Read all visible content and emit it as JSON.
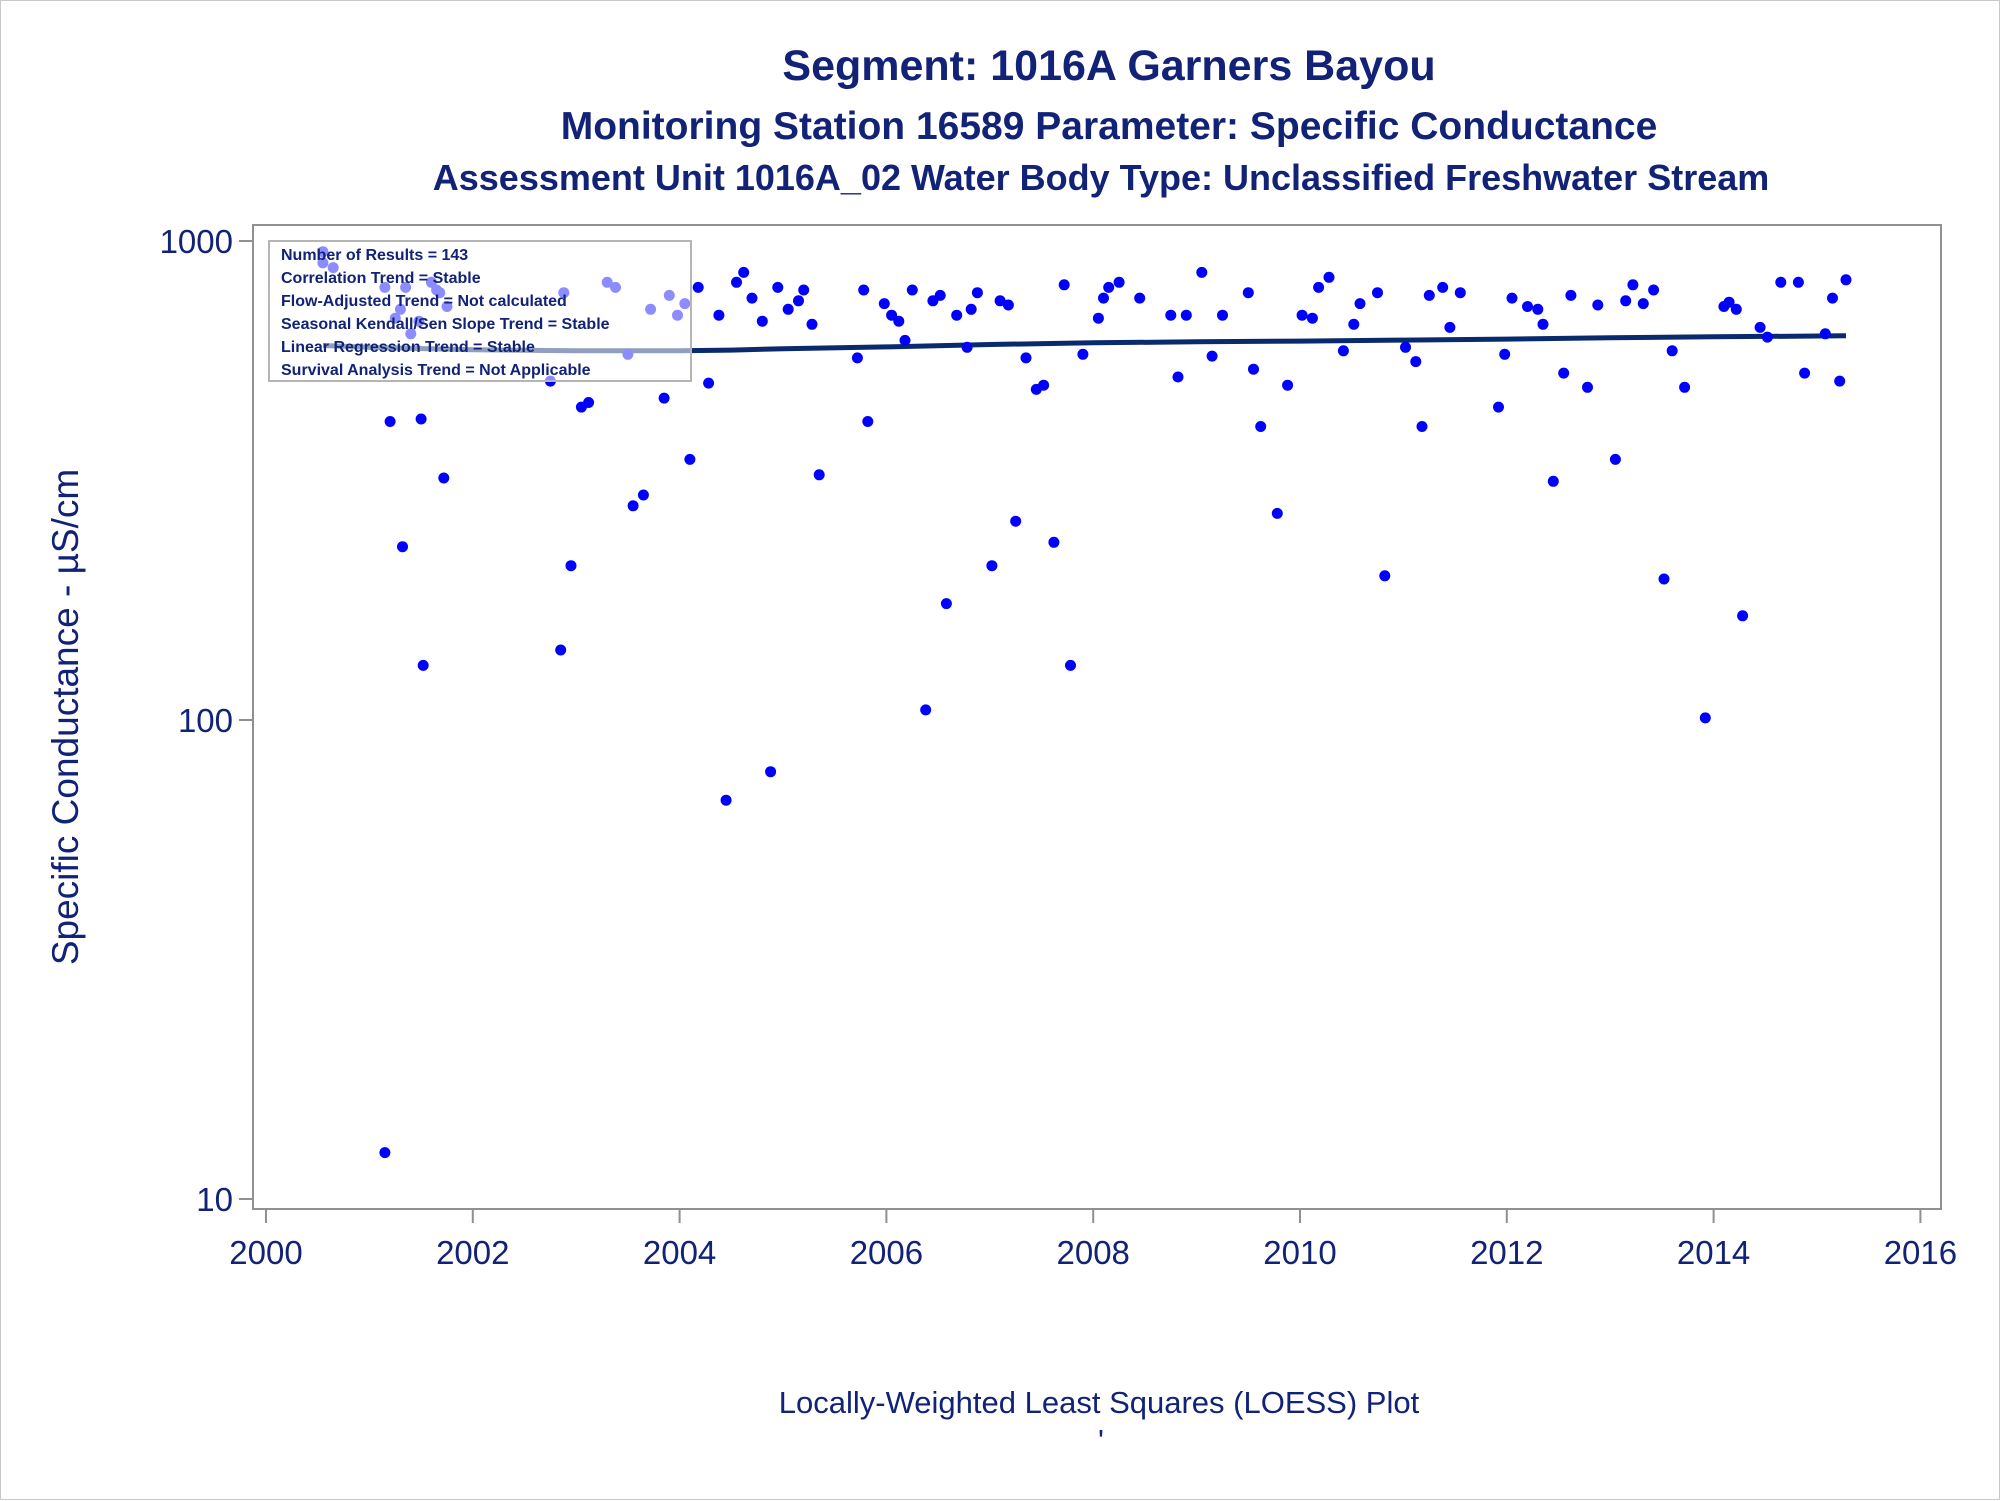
{
  "chart_data": {
    "type": "scatter",
    "title": "Segment: 1016A  Garners Bayou",
    "subtitle": "Monitoring Station 16589 Parameter: Specific Conductance",
    "subtitle2": "Assessment Unit 1016A_02   Water Body Type: Unclassified Freshwater Stream",
    "ylabel": "Specific Conductance -  µS/cm",
    "xlabel": "",
    "footnote": "Locally-Weighted Least Squares (LOESS) Plot",
    "footnote_mark": "'",
    "x_axis": {
      "min": 2000,
      "max": 2016,
      "ticks": [
        2000,
        2002,
        2004,
        2006,
        2008,
        2010,
        2012,
        2014,
        2016
      ]
    },
    "y_axis": {
      "scale": "log",
      "min": 10,
      "max": 1000,
      "ticks": [
        10,
        100,
        1000
      ]
    },
    "grid": false,
    "legend": "none",
    "colors": {
      "points": "#0000ff",
      "trend": "#0a2a6e",
      "text": "#112277",
      "axis": "#909090"
    },
    "stats_box": {
      "placement": "top-left",
      "lines": [
        "Number of Results = 143",
        "Correlation Trend = Stable",
        "Flow-Adjusted Trend = Not calculated",
        "Seasonal Kendall/Sen Slope Trend = Stable",
        "Linear Regression Trend = Stable",
        "Survival Analysis Trend = Not Applicable"
      ]
    },
    "series": [
      {
        "type": "scatter",
        "points": [
          [
            2000.55,
            950
          ],
          [
            2000.55,
            900
          ],
          [
            2000.65,
            880
          ],
          [
            2001.15,
            800
          ],
          [
            2001.2,
            420
          ],
          [
            2001.25,
            690
          ],
          [
            2001.3,
            720
          ],
          [
            2001.32,
            230
          ],
          [
            2001.35,
            800
          ],
          [
            2001.4,
            640
          ],
          [
            2001.48,
            680
          ],
          [
            2001.5,
            425
          ],
          [
            2001.52,
            130
          ],
          [
            2001.6,
            820
          ],
          [
            2001.65,
            790
          ],
          [
            2001.68,
            780
          ],
          [
            2001.72,
            320
          ],
          [
            2001.75,
            730
          ],
          [
            2001.15,
            12.5
          ],
          [
            2002.75,
            510
          ],
          [
            2002.85,
            140
          ],
          [
            2002.88,
            780
          ],
          [
            2002.95,
            210
          ],
          [
            2003.05,
            450
          ],
          [
            2003.12,
            460
          ],
          [
            2003.3,
            820
          ],
          [
            2003.38,
            800
          ],
          [
            2003.5,
            580
          ],
          [
            2003.55,
            280
          ],
          [
            2003.65,
            295
          ],
          [
            2003.72,
            720
          ],
          [
            2003.85,
            470
          ],
          [
            2003.9,
            770
          ],
          [
            2003.98,
            700
          ],
          [
            2004.05,
            740
          ],
          [
            2004.1,
            350
          ],
          [
            2004.18,
            800
          ],
          [
            2004.28,
            505
          ],
          [
            2004.38,
            700
          ],
          [
            2004.45,
            68
          ],
          [
            2004.55,
            820
          ],
          [
            2004.62,
            860
          ],
          [
            2004.7,
            760
          ],
          [
            2004.8,
            680
          ],
          [
            2004.88,
            78
          ],
          [
            2004.95,
            800
          ],
          [
            2005.05,
            720
          ],
          [
            2005.15,
            750
          ],
          [
            2005.2,
            790
          ],
          [
            2005.28,
            670
          ],
          [
            2005.35,
            325
          ],
          [
            2005.72,
            570
          ],
          [
            2005.78,
            790
          ],
          [
            2005.82,
            420
          ],
          [
            2005.98,
            740
          ],
          [
            2006.05,
            700
          ],
          [
            2006.12,
            680
          ],
          [
            2006.18,
            620
          ],
          [
            2006.25,
            790
          ],
          [
            2006.38,
            105
          ],
          [
            2006.45,
            750
          ],
          [
            2006.52,
            770
          ],
          [
            2006.58,
            175
          ],
          [
            2006.68,
            700
          ],
          [
            2006.78,
            600
          ],
          [
            2006.82,
            720
          ],
          [
            2006.88,
            780
          ],
          [
            2007.02,
            210
          ],
          [
            2007.1,
            750
          ],
          [
            2007.18,
            735
          ],
          [
            2007.25,
            260
          ],
          [
            2007.35,
            570
          ],
          [
            2007.45,
            490
          ],
          [
            2007.52,
            500
          ],
          [
            2007.62,
            235
          ],
          [
            2007.72,
            810
          ],
          [
            2007.78,
            130
          ],
          [
            2007.9,
            580
          ],
          [
            2008.05,
            690
          ],
          [
            2008.1,
            760
          ],
          [
            2008.15,
            800
          ],
          [
            2008.25,
            820
          ],
          [
            2008.45,
            760
          ],
          [
            2008.75,
            700
          ],
          [
            2008.82,
            520
          ],
          [
            2008.9,
            700
          ],
          [
            2009.05,
            860
          ],
          [
            2009.15,
            575
          ],
          [
            2009.25,
            700
          ],
          [
            2009.5,
            780
          ],
          [
            2009.55,
            540
          ],
          [
            2009.62,
            410
          ],
          [
            2009.78,
            270
          ],
          [
            2009.88,
            500
          ],
          [
            2010.02,
            700
          ],
          [
            2010.12,
            690
          ],
          [
            2010.18,
            800
          ],
          [
            2010.28,
            840
          ],
          [
            2010.42,
            590
          ],
          [
            2010.52,
            670
          ],
          [
            2010.58,
            740
          ],
          [
            2010.75,
            780
          ],
          [
            2010.82,
            200
          ],
          [
            2011.02,
            600
          ],
          [
            2011.12,
            560
          ],
          [
            2011.18,
            410
          ],
          [
            2011.25,
            770
          ],
          [
            2011.38,
            800
          ],
          [
            2011.45,
            660
          ],
          [
            2011.55,
            780
          ],
          [
            2011.92,
            450
          ],
          [
            2011.98,
            580
          ],
          [
            2012.05,
            760
          ],
          [
            2012.2,
            730
          ],
          [
            2012.3,
            720
          ],
          [
            2012.35,
            670
          ],
          [
            2012.45,
            315
          ],
          [
            2012.55,
            530
          ],
          [
            2012.62,
            770
          ],
          [
            2012.78,
            495
          ],
          [
            2012.88,
            735
          ],
          [
            2013.05,
            350
          ],
          [
            2013.15,
            750
          ],
          [
            2013.22,
            810
          ],
          [
            2013.32,
            740
          ],
          [
            2013.42,
            790
          ],
          [
            2013.52,
            197
          ],
          [
            2013.6,
            590
          ],
          [
            2013.72,
            495
          ],
          [
            2013.92,
            101
          ],
          [
            2014.1,
            730
          ],
          [
            2014.15,
            745
          ],
          [
            2014.22,
            720
          ],
          [
            2014.28,
            165
          ],
          [
            2014.45,
            660
          ],
          [
            2014.52,
            630
          ],
          [
            2014.65,
            820
          ],
          [
            2014.82,
            820
          ],
          [
            2014.88,
            530
          ],
          [
            2015.08,
            640
          ],
          [
            2015.15,
            760
          ],
          [
            2015.22,
            510
          ],
          [
            2015.28,
            830
          ]
        ]
      },
      {
        "type": "line",
        "points": [
          [
            2000.55,
            605
          ],
          [
            2001.0,
            600
          ],
          [
            2002.0,
            593
          ],
          [
            2003.0,
            590
          ],
          [
            2004.0,
            590
          ],
          [
            2004.5,
            592
          ],
          [
            2005.0,
            596
          ],
          [
            2006.0,
            601
          ],
          [
            2007.0,
            608
          ],
          [
            2008.0,
            613
          ],
          [
            2009.0,
            616
          ],
          [
            2010.0,
            618
          ],
          [
            2011.0,
            621
          ],
          [
            2012.0,
            624
          ],
          [
            2013.0,
            628
          ],
          [
            2014.0,
            631
          ],
          [
            2015.28,
            634
          ]
        ]
      }
    ]
  }
}
